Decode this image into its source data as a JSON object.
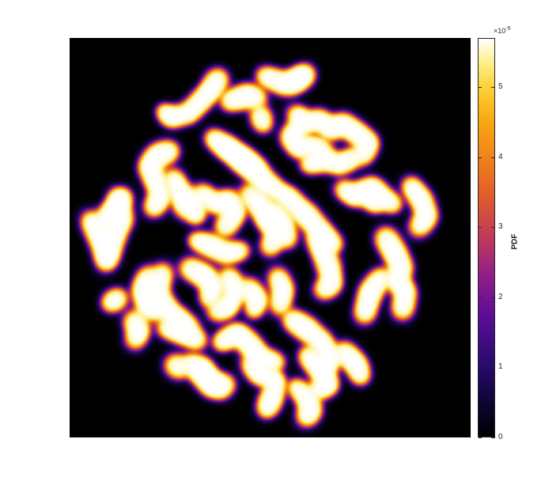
{
  "chart_data": {
    "type": "heatmap",
    "title": "",
    "xlabel": "",
    "ylabel": "",
    "colormap": "hot/inferno-like",
    "background_color": "#000000",
    "colorbar": {
      "label": "PDF",
      "exponent_label": "×10",
      "exponent_power": "-5",
      "range": [
        0,
        5.7
      ],
      "ticks": [
        0,
        1,
        2,
        3,
        4,
        5
      ],
      "tick_labels": [
        "0",
        "1",
        "2",
        "3",
        "4",
        "5"
      ],
      "colors": [
        "#000000",
        "#2a0a6e",
        "#8e1d8a",
        "#e05a2c",
        "#f9aa13",
        "#fdf08a",
        "#ffffff"
      ]
    }
  }
}
